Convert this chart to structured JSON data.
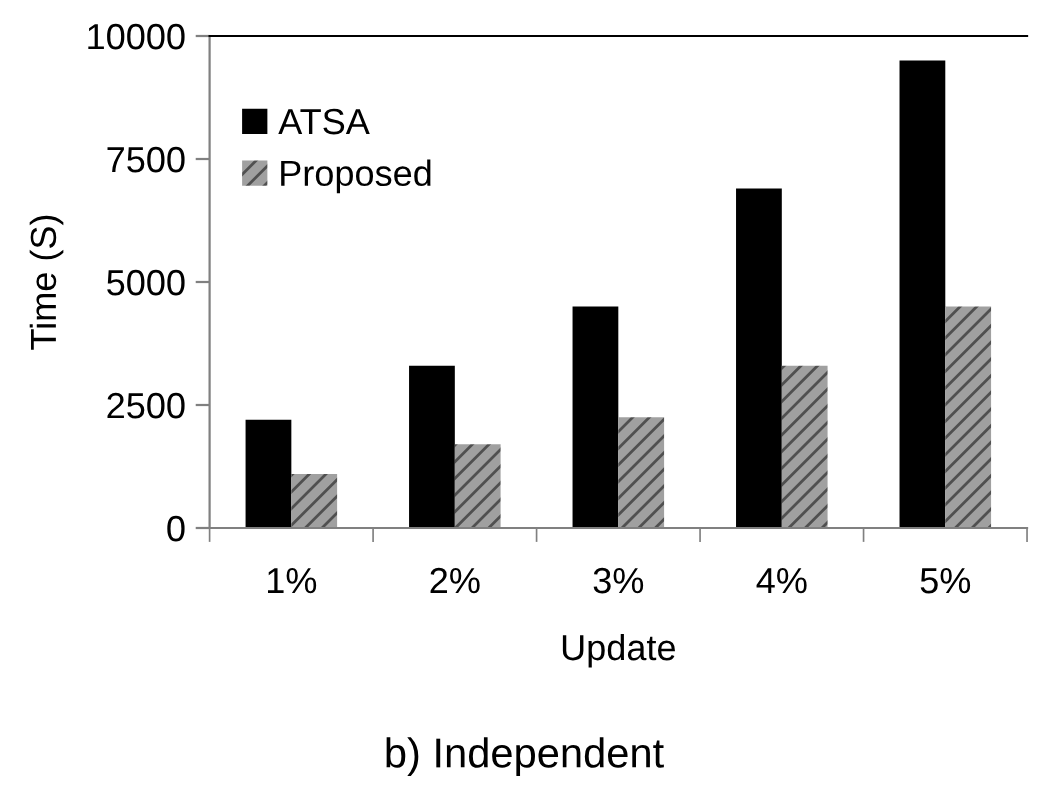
{
  "chart_data": {
    "type": "bar",
    "title": "b) Independent",
    "xlabel": "Update",
    "ylabel": "Time (S)",
    "categories": [
      "1%",
      "2%",
      "3%",
      "4%",
      "5%"
    ],
    "series": [
      {
        "name": "ATSA",
        "color": "#000000",
        "values": [
          2200,
          3300,
          4500,
          6900,
          9500
        ]
      },
      {
        "name": "Proposed",
        "color": "#a0a0a0",
        "values": [
          1100,
          1700,
          2250,
          3300,
          4500
        ]
      }
    ],
    "ylim": [
      0,
      10000
    ],
    "yticks": [
      0,
      2500,
      5000,
      7500,
      10000
    ],
    "grid": false,
    "legend": "top left"
  }
}
